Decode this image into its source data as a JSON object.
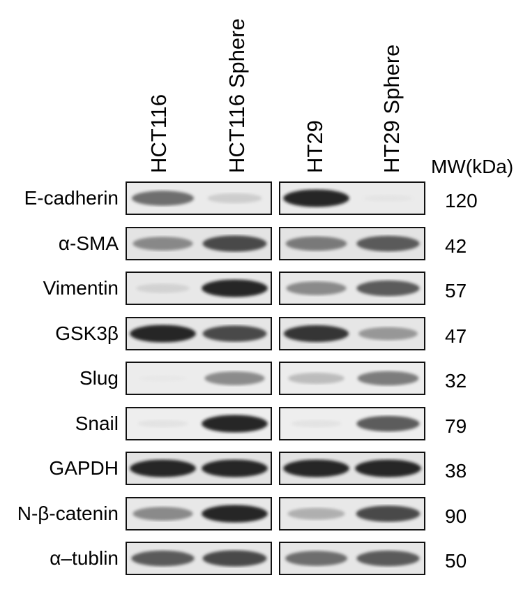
{
  "lanes": [
    {
      "label": "HCT116"
    },
    {
      "label": "HCT116  Sphere"
    },
    {
      "label": "HT29"
    },
    {
      "label": "HT29  Sphere"
    }
  ],
  "mw_header": "MW(kDa)",
  "rows": [
    {
      "protein": "E-cadherin",
      "mw": "120",
      "intensity": [
        0.75,
        0.35,
        0.95,
        0.08
      ],
      "bg": "#ebebeb"
    },
    {
      "protein": "α-SMA",
      "mw": "42",
      "intensity": [
        0.65,
        0.85,
        0.7,
        0.8
      ],
      "bg": "#e4e4e4"
    },
    {
      "protein": "Vimentin",
      "mw": "57",
      "intensity": [
        0.3,
        0.95,
        0.65,
        0.8
      ],
      "bg": "#e8e8e8"
    },
    {
      "protein": "GSK3β",
      "mw": "47",
      "intensity": [
        0.95,
        0.85,
        0.9,
        0.6
      ],
      "bg": "#e6e6e6"
    },
    {
      "protein": "Slug",
      "mw": "32",
      "intensity": [
        0.03,
        0.65,
        0.45,
        0.7
      ],
      "bg": "#ececec"
    },
    {
      "protein": "Snail",
      "mw": "79",
      "intensity": [
        0.15,
        0.95,
        0.15,
        0.8
      ],
      "bg": "#eeeeee"
    },
    {
      "protein": "GAPDH",
      "mw": "38",
      "intensity": [
        0.95,
        0.95,
        0.95,
        0.95
      ],
      "bg": "#e3e3e3"
    },
    {
      "protein": "N-β-catenin",
      "mw": "90",
      "intensity": [
        0.65,
        0.95,
        0.5,
        0.85
      ],
      "bg": "#e8e8e8"
    },
    {
      "protein": "α–tublin",
      "mw": "50",
      "intensity": [
        0.8,
        0.85,
        0.75,
        0.8
      ],
      "bg": "#e6e6e6"
    }
  ]
}
